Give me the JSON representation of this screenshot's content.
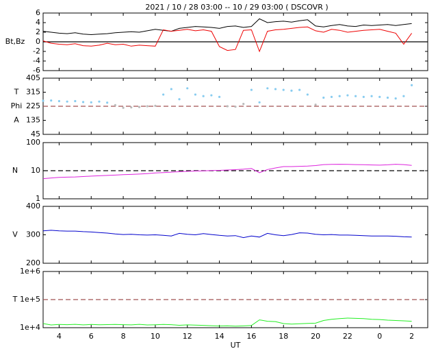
{
  "chart_data": {
    "title": "2021 / 10 / 28   03:00 -- 10 / 29   03:00 ( DSCOVR )",
    "xlabel": "UT",
    "xlim": [
      3,
      27
    ],
    "xticks": [
      4,
      6,
      8,
      10,
      12,
      14,
      16,
      18,
      20,
      22,
      {
        "value": 24,
        "label": "0"
      },
      {
        "value": 26,
        "label": "2"
      }
    ],
    "x": [
      3,
      3.5,
      4,
      4.5,
      5,
      5.5,
      6,
      6.5,
      7,
      7.5,
      8,
      8.5,
      9,
      9.5,
      10,
      10.5,
      11,
      11.5,
      12,
      12.5,
      13,
      13.5,
      14,
      14.5,
      15,
      15.5,
      16,
      16.5,
      17,
      17.5,
      18,
      18.5,
      19,
      19.5,
      20,
      20.5,
      21,
      21.5,
      22,
      22.5,
      23,
      23.5,
      24,
      24.5,
      25,
      25.5,
      26
    ],
    "panels": [
      {
        "type": "line",
        "ylabels": [
          "Bt,Bz"
        ],
        "ylim": [
          -6,
          6
        ],
        "yticks": [
          -6,
          -4,
          -2,
          0,
          2,
          4,
          6
        ],
        "log": false,
        "refline": {
          "value": 0,
          "color": "#000000",
          "dashed": false
        },
        "series": [
          {
            "color": "#000000",
            "values": [
              2.2,
              2.0,
              1.8,
              1.7,
              1.9,
              1.6,
              1.5,
              1.6,
              1.7,
              1.9,
              2.0,
              2.1,
              2.0,
              2.3,
              2.6,
              2.4,
              2.2,
              2.8,
              3.0,
              3.2,
              3.1,
              3.0,
              2.8,
              3.2,
              3.3,
              3.0,
              3.2,
              4.8,
              4.0,
              4.2,
              4.3,
              4.1,
              4.4,
              4.6,
              3.3,
              3.1,
              3.4,
              3.6,
              3.3,
              3.2,
              3.5,
              3.4,
              3.5,
              3.6,
              3.4,
              3.6,
              3.8
            ]
          },
          {
            "color": "#ee0000",
            "values": [
              0.2,
              -0.3,
              -0.5,
              -0.6,
              -0.4,
              -0.8,
              -0.9,
              -0.7,
              -0.3,
              -0.6,
              -0.5,
              -0.9,
              -0.7,
              -0.8,
              -0.9,
              2.5,
              2.2,
              2.4,
              2.6,
              2.3,
              2.5,
              2.2,
              -1.0,
              -1.8,
              -1.6,
              2.4,
              2.5,
              -2.0,
              2.2,
              2.5,
              2.6,
              2.8,
              3.0,
              3.1,
              2.3,
              2.0,
              2.6,
              2.4,
              2.0,
              2.2,
              2.4,
              2.5,
              2.6,
              2.2,
              1.8,
              -0.5,
              1.8
            ]
          }
        ]
      },
      {
        "type": "scatter",
        "ylabels": [
          "T",
          "Phi",
          "A"
        ],
        "ylim": [
          45,
          405
        ],
        "yticks": [
          45,
          135,
          225,
          315,
          405
        ],
        "log": false,
        "refline": {
          "value": 225,
          "color": "#a05050",
          "dashed": true
        },
        "series": [
          {
            "color": "#88ccf0",
            "values": [
              260,
              262,
              258,
              255,
              258,
              252,
              250,
              255,
              248,
              null,
              null,
              null,
              null,
              null,
              null,
              300,
              335,
              270,
              340,
              300,
              290,
              295,
              285,
              null,
              null,
              null,
              330,
              250,
              340,
              335,
              330,
              325,
              330,
              300,
              null,
              280,
              285,
              290,
              295,
              290,
              285,
              290,
              285,
              280,
              275,
              290,
              360
            ]
          },
          {
            "color": "#bbbbbb",
            "values": [
              null,
              null,
              null,
              null,
              null,
              null,
              null,
              null,
              null,
              232,
              215,
              218,
              220,
              225,
              228,
              null,
              null,
              null,
              null,
              null,
              null,
              null,
              null,
              225,
              222,
              240,
              null,
              null,
              null,
              null,
              null,
              null,
              null,
              null,
              235,
              null,
              null,
              null,
              null,
              null,
              null,
              null,
              null,
              null,
              null,
              null,
              null
            ]
          }
        ]
      },
      {
        "type": "line",
        "ylabels": [
          "N"
        ],
        "ylim": [
          1,
          100
        ],
        "yticks": [
          1,
          10,
          100
        ],
        "log": true,
        "refline": {
          "value": 10,
          "color": "#000000",
          "dashed": true
        },
        "series": [
          {
            "color": "#dd22dd",
            "values": [
              5.2,
              5.5,
              5.8,
              5.9,
              6.0,
              6.2,
              6.4,
              6.6,
              6.8,
              7.0,
              7.2,
              7.4,
              7.6,
              7.9,
              8.3,
              8.6,
              8.9,
              9.2,
              9.5,
              9.7,
              9.9,
              10.1,
              10.3,
              10.6,
              10.9,
              11.3,
              12.0,
              8.5,
              11.0,
              12.5,
              14.0,
              14.0,
              14.3,
              14.6,
              15.2,
              16.5,
              16.8,
              17.0,
              16.8,
              16.5,
              16.3,
              16.0,
              15.8,
              16.2,
              17.0,
              16.5,
              15.5
            ]
          }
        ]
      },
      {
        "type": "line",
        "ylabels": [
          "V"
        ],
        "ylim": [
          200,
          400
        ],
        "yticks": [
          200,
          300,
          400
        ],
        "log": false,
        "series": [
          {
            "color": "#0000cc",
            "values": [
              314,
              316,
              314,
              313,
              313,
              311,
              310,
              308,
              306,
              303,
              301,
              302,
              300,
              299,
              300,
              298,
              296,
              305,
              302,
              300,
              304,
              301,
              298,
              296,
              297,
              290,
              296,
              292,
              305,
              300,
              297,
              301,
              307,
              306,
              302,
              300,
              301,
              299,
              299,
              298,
              297,
              296,
              296,
              296,
              295,
              293,
              292
            ]
          }
        ]
      },
      {
        "type": "line",
        "ylabels": [
          "T"
        ],
        "ylim": [
          10000,
          1000000
        ],
        "yticks": [
          {
            "value": 10000,
            "label": "1e+4"
          },
          {
            "value": 100000,
            "label": "1e+5"
          },
          {
            "value": 1000000,
            "label": "1e+6"
          }
        ],
        "log": true,
        "refline": {
          "value": 100000,
          "color": "#a05050",
          "dashed": true
        },
        "series": [
          {
            "color": "#22ee22",
            "values": [
              14000,
              12500,
              13000,
              12800,
              13200,
              12600,
              13000,
              12700,
              12900,
              13100,
              12800,
              12600,
              13200,
              12500,
              12700,
              13000,
              12800,
              12200,
              12600,
              12400,
              12100,
              11800,
              11500,
              11700,
              11300,
              11600,
              12000,
              19000,
              17000,
              16500,
              14000,
              13500,
              13800,
              14200,
              14500,
              18000,
              20000,
              21000,
              22000,
              21500,
              21000,
              20000,
              19500,
              18500,
              18000,
              17500,
              17000
            ]
          }
        ]
      }
    ]
  }
}
